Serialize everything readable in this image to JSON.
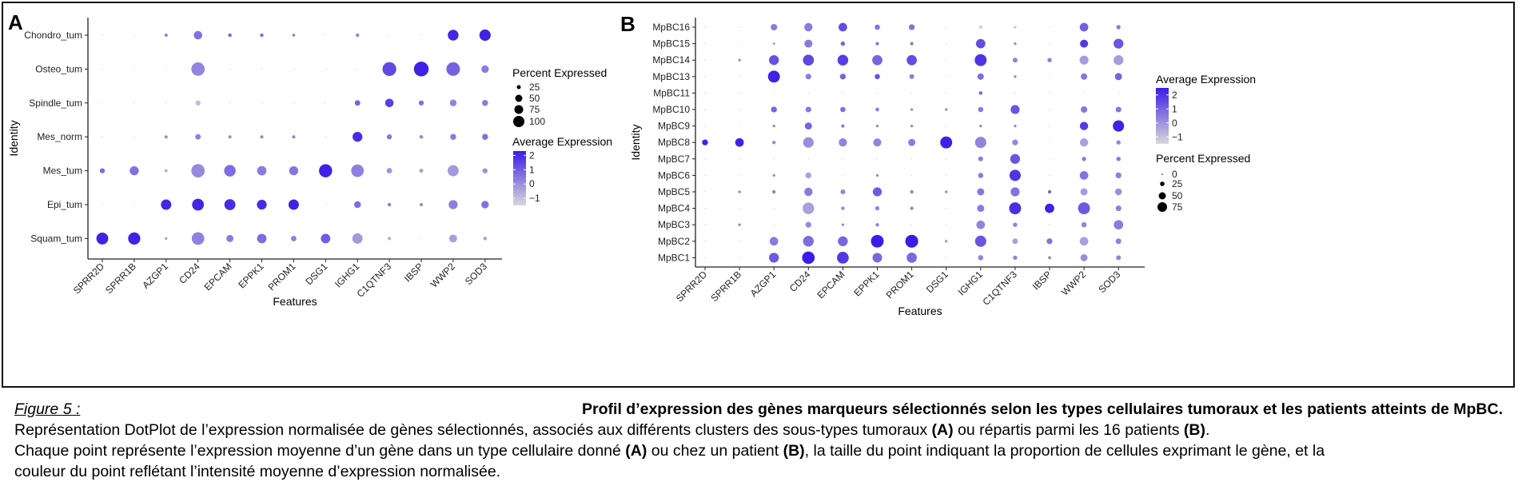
{
  "panels": {
    "A": {
      "label": "A"
    },
    "B": {
      "label": "B"
    }
  },
  "chart_data": [
    {
      "type": "dotplot",
      "panel": "A",
      "xlabel": "Features",
      "ylabel": "Identity",
      "features": [
        "SPRR2D",
        "SPRR1B",
        "AZGP1",
        "CD24",
        "EPCAM",
        "EPPK1",
        "PROM1",
        "DSG1",
        "IGHG1",
        "C1QTNF3",
        "IBSP",
        "WWP2",
        "SOD3"
      ],
      "identities": [
        "Chondro_tum",
        "Osteo_tum",
        "Spindle_tum",
        "Mes_norm",
        "Mes_tum",
        "Epi_tum",
        "Squam_tum"
      ],
      "size_legend": {
        "title": "Percent Expressed",
        "values": [
          25,
          50,
          75,
          100
        ]
      },
      "color_legend": {
        "title": "Average Expression",
        "ticks": [
          2,
          1,
          0,
          -1
        ],
        "min": -1.5,
        "max": 2.3,
        "low_color": "#d9d9d9",
        "high_color": "#3a1de6"
      },
      "pct_expressed": [
        [
          0,
          0,
          4,
          28,
          5,
          5,
          3,
          0,
          5,
          0,
          0,
          45,
          50
        ],
        [
          0,
          0,
          0,
          70,
          0,
          0,
          0,
          0,
          0,
          75,
          85,
          72,
          22
        ],
        [
          0,
          0,
          0,
          10,
          0,
          0,
          0,
          0,
          12,
          28,
          10,
          18,
          14
        ],
        [
          0,
          0,
          4,
          12,
          4,
          4,
          4,
          0,
          38,
          10,
          5,
          14,
          14
        ],
        [
          10,
          32,
          3,
          70,
          52,
          34,
          32,
          68,
          62,
          12,
          6,
          48,
          10
        ],
        [
          0,
          0,
          42,
          55,
          48,
          38,
          42,
          0,
          18,
          5,
          4,
          32,
          22
        ],
        [
          55,
          58,
          3,
          62,
          20,
          35,
          12,
          35,
          42,
          4,
          0,
          24,
          5
        ]
      ],
      "avg_expression": [
        [
          -1.2,
          -1.2,
          0.3,
          0.6,
          0.8,
          0.6,
          0.5,
          -1.2,
          0.1,
          -1.2,
          -1.2,
          2.1,
          2.2
        ],
        [
          -1.2,
          -1.2,
          -1.2,
          0.2,
          -1.2,
          -1.2,
          -1.2,
          -1.2,
          -1.2,
          1.4,
          2.2,
          0.9,
          0.4
        ],
        [
          -1.2,
          -1.2,
          -1.2,
          -0.9,
          -1.2,
          -1.2,
          -1.2,
          -1.2,
          0.9,
          1.6,
          0.6,
          0.2,
          0.4
        ],
        [
          -1.2,
          -1.2,
          0.1,
          0.3,
          0.1,
          0.2,
          0.3,
          -1.2,
          2.0,
          0.5,
          0.2,
          0.4,
          0.6
        ],
        [
          0.7,
          0.6,
          -0.3,
          0.1,
          0.7,
          0.4,
          0.5,
          2.2,
          0.3,
          -0.1,
          -0.3,
          -0.2,
          0.0
        ],
        [
          -1.2,
          -1.2,
          2.1,
          2.1,
          2.0,
          2.0,
          2.2,
          -1.2,
          0.7,
          0.3,
          0.2,
          0.3,
          0.6
        ],
        [
          2.2,
          2.2,
          -0.4,
          0.3,
          0.4,
          0.7,
          0.3,
          1.0,
          -0.2,
          -0.6,
          -1.2,
          -0.3,
          -0.4
        ]
      ]
    },
    {
      "type": "dotplot",
      "panel": "B",
      "xlabel": "Features",
      "ylabel": "Identity",
      "features": [
        "SPRR2D",
        "SPRR1B",
        "AZGP1",
        "CD24",
        "EPCAM",
        "EPPK1",
        "PROM1",
        "DSG1",
        "IGHG1",
        "C1QTNF3",
        "IBSP",
        "WWP2",
        "SOD3"
      ],
      "identities": [
        "MpBC16",
        "MpBC15",
        "MpBC14",
        "MpBC13",
        "MpBC11",
        "MpBC10",
        "MpBC9",
        "MpBC8",
        "MpBC7",
        "MpBC6",
        "MpBC5",
        "MpBC4",
        "MpBC3",
        "MpBC2",
        "MpBC1"
      ],
      "color_legend": {
        "title": "Average Expression",
        "ticks": [
          2,
          1,
          0,
          -1
        ],
        "min": -1.5,
        "max": 2.5,
        "low_color": "#d9d9d9",
        "high_color": "#3a1de6"
      },
      "size_legend": {
        "title": "Percent Expressed",
        "values": [
          0,
          25,
          50,
          75
        ]
      },
      "pct_expressed": [
        [
          0,
          0,
          18,
          30,
          32,
          12,
          15,
          0,
          5,
          4,
          0,
          32,
          8
        ],
        [
          0,
          0,
          3,
          28,
          8,
          5,
          5,
          0,
          38,
          3,
          0,
          28,
          42
        ],
        [
          0,
          3,
          42,
          52,
          50,
          45,
          45,
          0,
          62,
          10,
          8,
          35,
          42
        ],
        [
          0,
          0,
          62,
          14,
          15,
          12,
          10,
          0,
          18,
          3,
          0,
          18,
          22
        ],
        [
          0,
          0,
          0,
          0,
          0,
          0,
          0,
          0,
          6,
          0,
          0,
          0,
          0
        ],
        [
          0,
          0,
          15,
          14,
          12,
          6,
          3,
          3,
          12,
          35,
          0,
          18,
          14
        ],
        [
          0,
          0,
          3,
          22,
          5,
          3,
          3,
          0,
          3,
          3,
          0,
          30,
          55
        ],
        [
          15,
          32,
          5,
          48,
          30,
          28,
          22,
          62,
          55,
          15,
          0,
          30,
          8
        ],
        [
          0,
          0,
          0,
          0,
          0,
          0,
          0,
          0,
          10,
          42,
          0,
          8,
          8
        ],
        [
          0,
          0,
          3,
          15,
          0,
          3,
          0,
          0,
          12,
          55,
          0,
          32,
          15
        ],
        [
          0,
          3,
          5,
          30,
          10,
          35,
          5,
          3,
          22,
          35,
          5,
          22,
          20
        ],
        [
          0,
          0,
          0,
          58,
          5,
          8,
          5,
          0,
          22,
          62,
          38,
          62,
          14
        ],
        [
          0,
          3,
          0,
          15,
          3,
          5,
          0,
          0,
          32,
          8,
          0,
          12,
          38
        ],
        [
          0,
          0,
          32,
          50,
          42,
          70,
          72,
          3,
          55,
          14,
          15,
          32,
          14
        ],
        [
          0,
          0,
          42,
          68,
          60,
          40,
          45,
          0,
          12,
          8,
          4,
          22,
          10
        ]
      ],
      "avg_expression": [
        [
          -1.3,
          -1.3,
          0.5,
          0.5,
          1.5,
          0.7,
          0.7,
          -1.3,
          -1.3,
          -1.3,
          -1.3,
          1.1,
          0.5
        ],
        [
          -1.3,
          -1.3,
          -0.5,
          0.5,
          1.1,
          0.6,
          0.5,
          -1.3,
          1.5,
          0.3,
          -1.3,
          1.9,
          1.3
        ],
        [
          -1.3,
          0.2,
          1.4,
          1.6,
          1.8,
          1.0,
          1.5,
          -1.3,
          2.0,
          0.4,
          0.5,
          -0.2,
          -0.2
        ],
        [
          -1.3,
          -1.3,
          2.4,
          0.5,
          1.0,
          1.3,
          0.5,
          -1.3,
          0.8,
          0.3,
          -1.3,
          0.6,
          1.0
        ],
        [
          -1.3,
          -1.3,
          -1.3,
          -1.3,
          -1.3,
          -1.3,
          -1.3,
          -1.3,
          0.8,
          -1.3,
          -1.3,
          -1.3,
          -1.3
        ],
        [
          -1.3,
          -1.3,
          1.0,
          0.6,
          0.8,
          0.5,
          0.2,
          0.3,
          0.5,
          1.3,
          -1.3,
          0.6,
          0.6
        ],
        [
          -1.3,
          -1.3,
          0.3,
          1.0,
          0.5,
          0.3,
          0.3,
          -1.3,
          0.4,
          0.3,
          -1.3,
          1.9,
          2.4
        ],
        [
          2.4,
          2.4,
          0.3,
          0.1,
          0.3,
          0.3,
          0.5,
          2.4,
          0.3,
          0.2,
          -1.3,
          -0.3,
          0.3
        ],
        [
          -1.3,
          -1.3,
          -1.3,
          -1.3,
          -1.3,
          -1.3,
          -1.3,
          -1.3,
          0.5,
          1.3,
          -1.3,
          0.5,
          0.5
        ],
        [
          -1.3,
          -1.3,
          0.2,
          -0.3,
          -1.3,
          0.3,
          -1.3,
          -1.3,
          0.5,
          2.0,
          -1.3,
          0.7,
          0.4
        ],
        [
          -1.3,
          0.4,
          0.4,
          0.5,
          0.3,
          1.2,
          0.4,
          0.3,
          0.6,
          0.7,
          1.0,
          -0.2,
          0.1
        ],
        [
          -1.3,
          -1.3,
          -1.3,
          -0.3,
          0.3,
          0.3,
          0.3,
          -1.3,
          0.5,
          2.1,
          2.4,
          1.2,
          0.4
        ],
        [
          -1.3,
          0.3,
          -1.3,
          0.2,
          0.3,
          0.5,
          -1.3,
          -1.3,
          0.3,
          0.4,
          -1.3,
          0.3,
          0.5
        ],
        [
          -1.3,
          -1.3,
          0.5,
          0.8,
          1.0,
          2.5,
          2.5,
          0.1,
          1.3,
          -0.3,
          0.7,
          -0.3,
          0.3
        ],
        [
          -1.3,
          -1.3,
          1.2,
          2.5,
          1.9,
          0.9,
          0.9,
          -1.3,
          0.3,
          0.3,
          0.3,
          0.1,
          0.3
        ]
      ]
    }
  ],
  "caption": {
    "figure_label": "Figure 5 :",
    "title": "Profil d’expression des gènes marqueurs sélectionnés selon les types cellulaires tumoraux et les patients atteints de MpBC.",
    "line2_start": "Représentation DotPlot de l’expression normalisée de gènes sélectionnés, associés aux différents clusters des sous-types tumoraux",
    "line2_a": "(A)",
    "line2_mid": "ou répartis parmi les 16 patients",
    "line2_b": "(B)",
    "line2_end": ".",
    "line3_start": "Chaque point représente l’expression moyenne d’un gène dans un type cellulaire donné",
    "line3_a": "(A)",
    "line3_mid": "ou chez un patient",
    "line3_b": "(B)",
    "line3_end": ", la taille du point indiquant la proportion de cellules exprimant le gène, et la",
    "line4": "couleur du point reflétant l’intensité moyenne d’expression normalisée."
  }
}
